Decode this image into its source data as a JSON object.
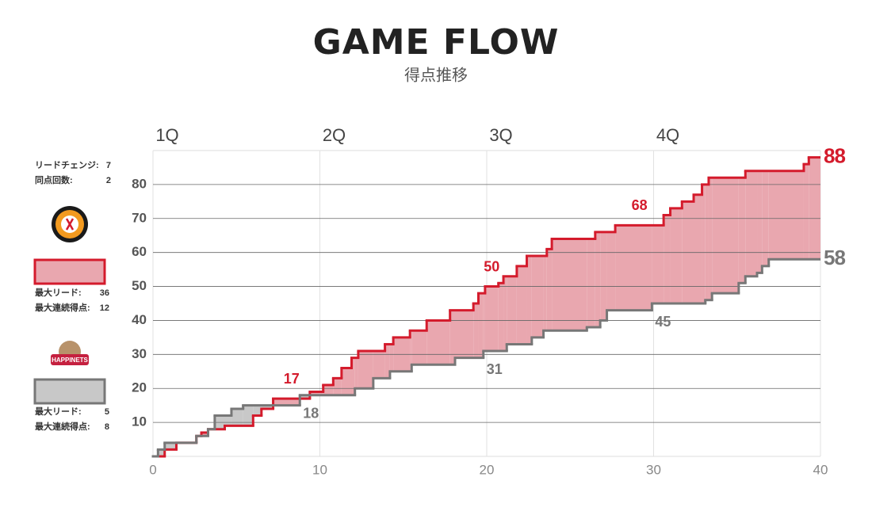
{
  "chart_data": {
    "type": "step",
    "title": "GAME FLOW",
    "subtitle": "得点推移",
    "quarters": [
      "1Q",
      "2Q",
      "3Q",
      "4Q"
    ],
    "xlim": [
      0,
      40
    ],
    "xticks": [
      0,
      10,
      20,
      30,
      40
    ],
    "ylim": [
      0,
      90
    ],
    "yticks": [
      10,
      20,
      30,
      40,
      50,
      60,
      70,
      80
    ],
    "grid": true,
    "series": [
      {
        "color": "#d41b2c",
        "fill": "#e9a7af",
        "x": [
          0,
          0.7,
          1.4,
          2.6,
          2.9,
          3.3,
          4.3,
          6.0,
          6.5,
          7.2,
          9.4,
          10.2,
          10.8,
          11.3,
          11.9,
          12.3,
          13.9,
          14.4,
          15.4,
          16.4,
          17.8,
          19.2,
          19.5,
          19.9,
          20.7,
          21.0,
          21.8,
          22.4,
          23.6,
          23.9,
          26.5,
          27.7,
          30.6,
          31.0,
          31.7,
          32.4,
          32.9,
          33.3,
          35.5,
          39.0,
          39.3
        ],
        "values": [
          0,
          2,
          4,
          6,
          7,
          8,
          9,
          12,
          14,
          17,
          19,
          21,
          23,
          26,
          29,
          31,
          33,
          35,
          37,
          40,
          43,
          45,
          48,
          50,
          51,
          53,
          56,
          59,
          61,
          64,
          66,
          68,
          71,
          73,
          75,
          77,
          80,
          82,
          84,
          86,
          88
        ]
      },
      {
        "color": "#777777",
        "fill": "#c8c8c8",
        "x": [
          0,
          0.3,
          0.7,
          2.6,
          3.3,
          3.7,
          4.7,
          5.4,
          8.8,
          12.1,
          13.2,
          14.2,
          15.5,
          18.1,
          19.8,
          21.2,
          22.7,
          23.4,
          26.0,
          26.8,
          27.2,
          29.9,
          33.1,
          33.5,
          35.1,
          35.5,
          36.2,
          36.5,
          36.9
        ],
        "values": [
          0,
          2,
          4,
          6,
          8,
          12,
          14,
          15,
          18,
          20,
          23,
          25,
          27,
          29,
          31,
          33,
          35,
          37,
          38,
          40,
          43,
          45,
          46,
          48,
          51,
          53,
          54,
          56,
          58
        ]
      }
    ]
  },
  "stats": {
    "lead_changes": {
      "label": "リードチェンジ:",
      "value": 7
    },
    "ties": {
      "label": "同点回数:",
      "value": 2
    },
    "teams": [
      {
        "max_lead": {
          "label": "最大リード:",
          "value": 36
        },
        "max_run": {
          "label": "最大連続得点:",
          "value": 12
        }
      },
      {
        "logo_text": "HAPPINETS",
        "max_lead": {
          "label": "最大リード:",
          "value": 5
        },
        "max_run": {
          "label": "最大連続得点:",
          "value": 8
        }
      }
    ]
  }
}
